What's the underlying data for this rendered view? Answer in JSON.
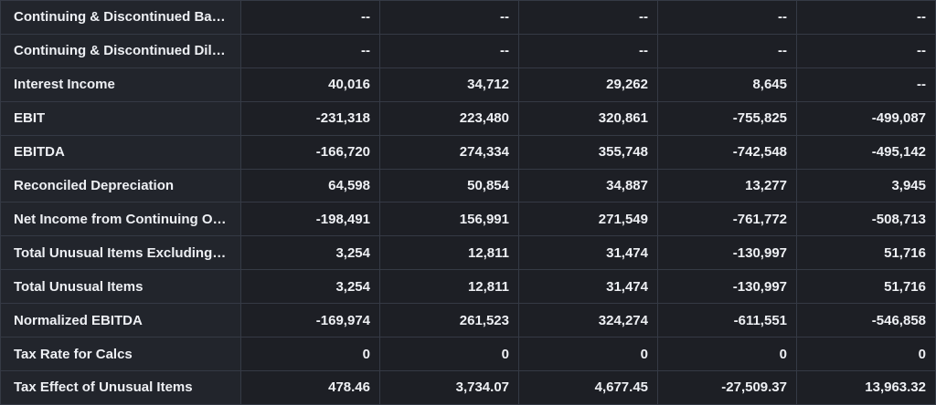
{
  "rows": [
    {
      "label": "Continuing & Discontinued Basi...",
      "values": [
        "--",
        "--",
        "--",
        "--",
        "--"
      ]
    },
    {
      "label": "Continuing & Discontinued Dilut...",
      "values": [
        "--",
        "--",
        "--",
        "--",
        "--"
      ]
    },
    {
      "label": "Interest Income",
      "values": [
        "40,016",
        "34,712",
        "29,262",
        "8,645",
        "--"
      ]
    },
    {
      "label": "EBIT",
      "values": [
        "-231,318",
        "223,480",
        "320,861",
        "-755,825",
        "-499,087"
      ]
    },
    {
      "label": "EBITDA",
      "values": [
        "-166,720",
        "274,334",
        "355,748",
        "-742,548",
        "-495,142"
      ]
    },
    {
      "label": "Reconciled Depreciation",
      "values": [
        "64,598",
        "50,854",
        "34,887",
        "13,277",
        "3,945"
      ]
    },
    {
      "label": "Net Income from Continuing Op...",
      "values": [
        "-198,491",
        "156,991",
        "271,549",
        "-761,772",
        "-508,713"
      ]
    },
    {
      "label": "Total Unusual Items Excluding G...",
      "values": [
        "3,254",
        "12,811",
        "31,474",
        "-130,997",
        "51,716"
      ]
    },
    {
      "label": "Total Unusual Items",
      "values": [
        "3,254",
        "12,811",
        "31,474",
        "-130,997",
        "51,716"
      ]
    },
    {
      "label": "Normalized EBITDA",
      "values": [
        "-169,974",
        "261,523",
        "324,274",
        "-611,551",
        "-546,858"
      ]
    },
    {
      "label": "Tax Rate for Calcs",
      "values": [
        "0",
        "0",
        "0",
        "0",
        "0"
      ]
    },
    {
      "label": "Tax Effect of Unusual Items",
      "values": [
        "478.46",
        "3,734.07",
        "4,677.45",
        "-27,509.37",
        "13,963.32"
      ]
    }
  ]
}
